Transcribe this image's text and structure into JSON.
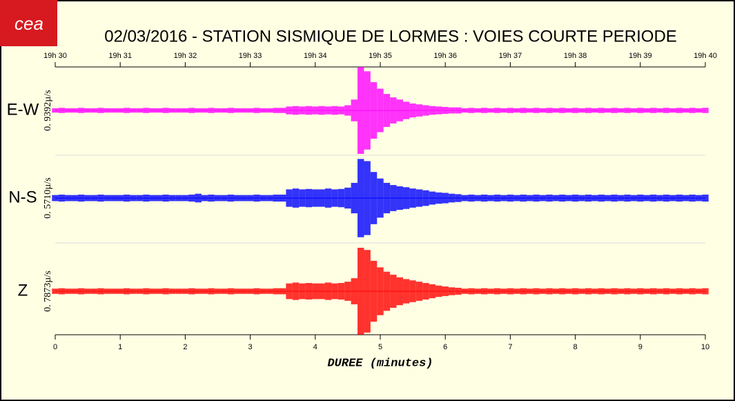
{
  "chart_data": {
    "type": "seismogram",
    "logo": "cea",
    "title": "02/03/2016  -  STATION SISMIQUE DE LORMES : VOIES COURTE PERIODE",
    "xlabel": "DUREE (minutes)",
    "xlim": [
      0,
      10
    ],
    "ylim": [
      -1,
      1
    ],
    "xticks": [
      0,
      1,
      2,
      3,
      4,
      5,
      6,
      7,
      8,
      9,
      10
    ],
    "x2ticks": [
      {
        "value": 0,
        "label": "19h 30"
      },
      {
        "value": 1,
        "label": "19h 31"
      },
      {
        "value": 2,
        "label": "19h 32"
      },
      {
        "value": 3,
        "label": "19h 33"
      },
      {
        "value": 4,
        "label": "19h 34"
      },
      {
        "value": 5,
        "label": "19h 35"
      },
      {
        "value": 6,
        "label": "19h 36"
      },
      {
        "value": 7,
        "label": "19h 37"
      },
      {
        "value": 8,
        "label": "19h 38"
      },
      {
        "value": 9,
        "label": "19h 39"
      },
      {
        "value": 10,
        "label": "19h 40"
      }
    ],
    "x": [
      0,
      0.1,
      0.2,
      0.3,
      0.4,
      0.5,
      0.6,
      0.7,
      0.8,
      0.9,
      1,
      1.1,
      1.2,
      1.3,
      1.4,
      1.5,
      1.6,
      1.7,
      1.8,
      1.9,
      2,
      2.1,
      2.2,
      2.3,
      2.4,
      2.5,
      2.6,
      2.7,
      2.8,
      2.9,
      3,
      3.1,
      3.2,
      3.3,
      3.4,
      3.5,
      3.6,
      3.7,
      3.8,
      3.9,
      4,
      4.1,
      4.2,
      4.3,
      4.4,
      4.5,
      4.6,
      4.7,
      4.8,
      4.9,
      5,
      5.1,
      5.2,
      5.3,
      5.4,
      5.5,
      5.6,
      5.7,
      5.8,
      5.9,
      6,
      6.1,
      6.2,
      6.3,
      6.4,
      6.5,
      6.6,
      6.7,
      6.8,
      6.9,
      7,
      7.1,
      7.2,
      7.3,
      7.4,
      7.5,
      7.6,
      7.7,
      7.8,
      7.9,
      8,
      8.1,
      8.2,
      8.3,
      8.4,
      8.5,
      8.6,
      8.7,
      8.8,
      8.9,
      9,
      9.1,
      9.2,
      9.3,
      9.4,
      9.5,
      9.6,
      9.7,
      9.8,
      9.9,
      10
    ],
    "series": [
      {
        "name": "E-W",
        "scale_label": "0. 9392µ/s",
        "color": "#ff00ff",
        "values": [
          0.05,
          0.06,
          0.05,
          0.05,
          0.06,
          0.05,
          0.05,
          0.06,
          0.05,
          0.05,
          0.05,
          0.06,
          0.05,
          0.05,
          0.06,
          0.05,
          0.05,
          0.06,
          0.05,
          0.05,
          0.05,
          0.06,
          0.05,
          0.05,
          0.06,
          0.05,
          0.05,
          0.06,
          0.05,
          0.05,
          0.05,
          0.06,
          0.05,
          0.05,
          0.06,
          0.06,
          0.09,
          0.1,
          0.09,
          0.1,
          0.09,
          0.1,
          0.09,
          0.1,
          0.09,
          0.12,
          0.25,
          1.0,
          0.9,
          0.65,
          0.5,
          0.38,
          0.3,
          0.25,
          0.2,
          0.16,
          0.14,
          0.12,
          0.1,
          0.09,
          0.08,
          0.07,
          0.07,
          0.05,
          0.06,
          0.05,
          0.06,
          0.05,
          0.06,
          0.05,
          0.06,
          0.05,
          0.06,
          0.05,
          0.06,
          0.05,
          0.06,
          0.05,
          0.06,
          0.05,
          0.06,
          0.05,
          0.06,
          0.05,
          0.06,
          0.05,
          0.06,
          0.05,
          0.06,
          0.05,
          0.06,
          0.05,
          0.06,
          0.05,
          0.06,
          0.05,
          0.06,
          0.05,
          0.06,
          0.05,
          0.06
        ]
      },
      {
        "name": "N-S",
        "scale_label": "0. 5710µ/s",
        "color": "#0000ff",
        "values": [
          0.07,
          0.08,
          0.07,
          0.07,
          0.08,
          0.07,
          0.07,
          0.08,
          0.07,
          0.07,
          0.07,
          0.08,
          0.07,
          0.07,
          0.08,
          0.07,
          0.07,
          0.08,
          0.07,
          0.07,
          0.07,
          0.08,
          0.1,
          0.07,
          0.08,
          0.07,
          0.07,
          0.08,
          0.07,
          0.07,
          0.07,
          0.08,
          0.07,
          0.07,
          0.08,
          0.08,
          0.2,
          0.22,
          0.2,
          0.21,
          0.2,
          0.2,
          0.22,
          0.2,
          0.21,
          0.24,
          0.35,
          0.9,
          0.85,
          0.6,
          0.45,
          0.35,
          0.3,
          0.27,
          0.25,
          0.22,
          0.2,
          0.18,
          0.15,
          0.13,
          0.12,
          0.1,
          0.09,
          0.07,
          0.08,
          0.07,
          0.08,
          0.07,
          0.08,
          0.07,
          0.08,
          0.07,
          0.08,
          0.07,
          0.08,
          0.07,
          0.08,
          0.07,
          0.08,
          0.07,
          0.08,
          0.07,
          0.08,
          0.07,
          0.08,
          0.07,
          0.08,
          0.07,
          0.08,
          0.07,
          0.08,
          0.07,
          0.08,
          0.07,
          0.08,
          0.07,
          0.08,
          0.07,
          0.08,
          0.07,
          0.08
        ]
      },
      {
        "name": "Z",
        "scale_label": "0. 7873µ/s",
        "color": "#ff0000",
        "values": [
          0.06,
          0.07,
          0.06,
          0.06,
          0.07,
          0.06,
          0.06,
          0.07,
          0.06,
          0.06,
          0.06,
          0.07,
          0.06,
          0.06,
          0.07,
          0.06,
          0.06,
          0.07,
          0.06,
          0.06,
          0.06,
          0.07,
          0.06,
          0.06,
          0.07,
          0.06,
          0.06,
          0.07,
          0.06,
          0.06,
          0.06,
          0.07,
          0.06,
          0.06,
          0.07,
          0.07,
          0.18,
          0.2,
          0.18,
          0.19,
          0.18,
          0.18,
          0.2,
          0.18,
          0.19,
          0.22,
          0.3,
          1.0,
          0.95,
          0.7,
          0.55,
          0.45,
          0.38,
          0.32,
          0.28,
          0.25,
          0.22,
          0.19,
          0.16,
          0.13,
          0.11,
          0.09,
          0.08,
          0.06,
          0.07,
          0.06,
          0.07,
          0.06,
          0.07,
          0.06,
          0.07,
          0.06,
          0.07,
          0.06,
          0.07,
          0.06,
          0.07,
          0.06,
          0.07,
          0.06,
          0.07,
          0.06,
          0.07,
          0.06,
          0.07,
          0.06,
          0.07,
          0.06,
          0.07,
          0.06,
          0.07,
          0.06,
          0.07,
          0.06,
          0.07,
          0.06,
          0.07,
          0.06,
          0.07,
          0.06,
          0.07
        ]
      }
    ]
  }
}
